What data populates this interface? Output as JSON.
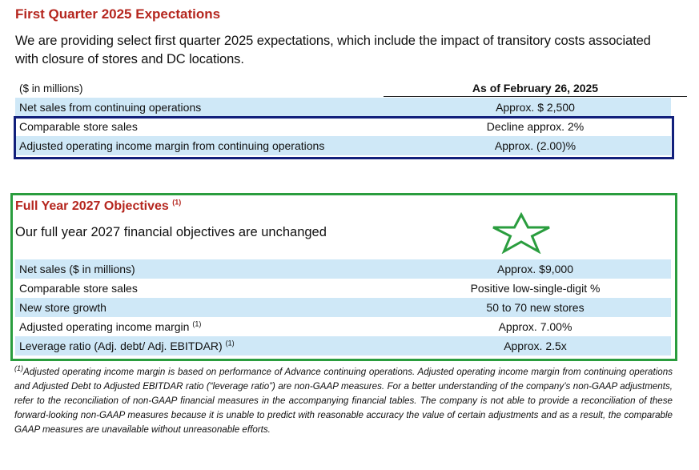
{
  "q1": {
    "title": "First Quarter 2025 Expectations",
    "intro": "We are providing select first quarter 2025 expectations, which include the impact of transitory costs associated with closure of stores and DC locations.",
    "header_label": "($ in millions)",
    "header_value": "As of February 26, 2025",
    "rows": [
      {
        "label": "Net sales from continuing operations",
        "value": "Approx. $ 2,500"
      },
      {
        "label": "Comparable store sales",
        "value": "Decline approx. 2%"
      },
      {
        "label": "Adjusted operating income margin from continuing operations",
        "value": "Approx. (2.00)%"
      }
    ]
  },
  "fy": {
    "title": "Full Year 2027 Objectives",
    "title_note": "(1)",
    "subtitle": "Our full year 2027 financial objectives are unchanged",
    "star_icon": "star-outline-icon",
    "rows": [
      {
        "label": "Net sales ($ in millions)",
        "note": "",
        "value": "Approx. $9,000"
      },
      {
        "label": "Comparable store sales",
        "note": "",
        "value": "Positive low-single-digit %"
      },
      {
        "label": "New store growth",
        "note": "",
        "value": "50 to 70 new stores"
      },
      {
        "label": "Adjusted operating income margin",
        "note": "(1)",
        "value": "Approx. 7.00%"
      },
      {
        "label": "Leverage ratio (Adj. debt/ Adj. EBITDAR)",
        "note": "(1)",
        "value": "Approx. 2.5x"
      }
    ]
  },
  "footnote": {
    "mark": "(1)",
    "text": "Adjusted operating income margin is based on performance of Advance continuing operations. Adjusted operating income margin from continuing operations and Adjusted Debt to Adjusted EBITDAR ratio (“leverage ratio”) are non-GAAP measures. For a better understanding of the company’s non-GAAP adjustments, refer to the reconciliation of non-GAAP financial measures in the accompanying financial tables. The company is not able to provide a reconciliation of these forward-looking non-GAAP measures because it is unable to predict with reasonable accuracy the value of certain adjustments and as a result, the comparable GAAP measures are unavailable without unreasonable efforts."
  },
  "colors": {
    "heading_red": "#b5261e",
    "row_blue": "#cfe8f7",
    "highlight_navy": "#12207c",
    "highlight_green": "#2a9d3e"
  }
}
